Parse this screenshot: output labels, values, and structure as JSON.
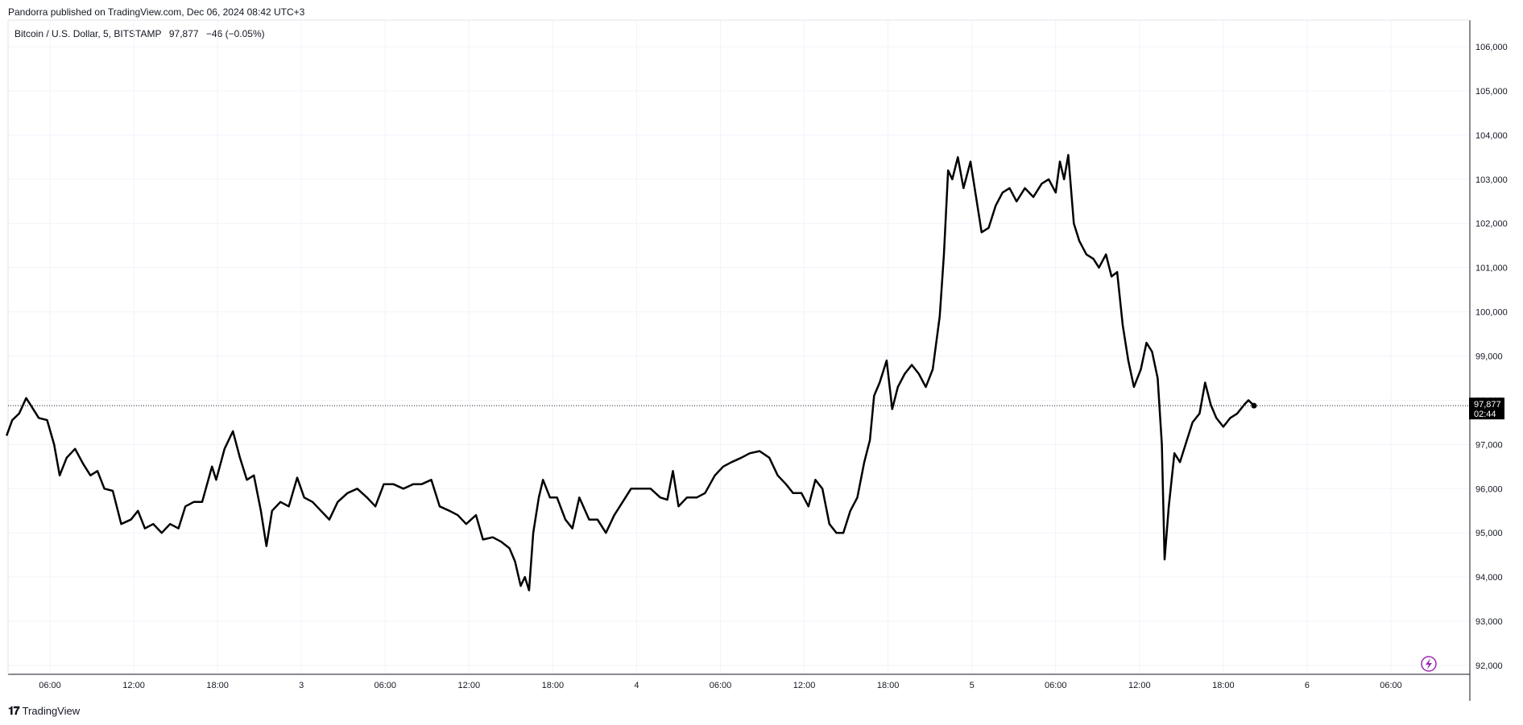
{
  "publisher": "Pandorra published on TradingView.com, Dec 06, 2024 08:42 UTC+3",
  "legend": {
    "symbol": "Bitcoin / U.S. Dollar, 5, BITSTAMP",
    "price": "97,877",
    "change": "−46 (−0.05%)"
  },
  "footer": {
    "brand": "TradingView",
    "logo": "tradingview-logo-icon"
  },
  "current_price": {
    "value": "97,877",
    "countdown": "02:44"
  },
  "colors": {
    "line": "#000000",
    "grid": "#f0f3fa",
    "axis": "#131722",
    "price_label": "#000000",
    "lightning": "#9c27b0"
  },
  "chart_data": {
    "type": "line",
    "title": "Bitcoin / U.S. Dollar, 5, BITSTAMP",
    "xlabel": "",
    "ylabel": "",
    "ylim": [
      91800,
      106500
    ],
    "y_ticks": [
      92000,
      93000,
      94000,
      95000,
      96000,
      97000,
      98000,
      99000,
      100000,
      101000,
      102000,
      103000,
      104000,
      105000,
      106000
    ],
    "y_tick_labels": [
      "92,000",
      "93,000",
      "94,000",
      "95,000",
      "96,000",
      "97,000",
      "98,000",
      "99,000",
      "100,000",
      "101,000",
      "102,000",
      "103,000",
      "104,000",
      "105,000",
      "106,000"
    ],
    "x_ticks": [
      {
        "label": "06:00",
        "t": 6
      },
      {
        "label": "12:00",
        "t": 12
      },
      {
        "label": "18:00",
        "t": 18
      },
      {
        "label": "3",
        "t": 24
      },
      {
        "label": "06:00",
        "t": 30
      },
      {
        "label": "12:00",
        "t": 36
      },
      {
        "label": "18:00",
        "t": 42
      },
      {
        "label": "4",
        "t": 48
      },
      {
        "label": "06:00",
        "t": 54
      },
      {
        "label": "12:00",
        "t": 60
      },
      {
        "label": "18:00",
        "t": 66
      },
      {
        "label": "5",
        "t": 72
      },
      {
        "label": "06:00",
        "t": 78
      },
      {
        "label": "12:00",
        "t": 84
      },
      {
        "label": "18:00",
        "t": 90
      },
      {
        "label": "6",
        "t": 96
      },
      {
        "label": "06:00",
        "t": 102
      }
    ],
    "series": [
      {
        "values": [
          [
            2.9,
            97200
          ],
          [
            3.3,
            97550
          ],
          [
            3.8,
            97700
          ],
          [
            4.3,
            98050
          ],
          [
            4.7,
            97850
          ],
          [
            5.2,
            97600
          ],
          [
            5.8,
            97550
          ],
          [
            6.3,
            97000
          ],
          [
            6.7,
            96300
          ],
          [
            7.2,
            96700
          ],
          [
            7.8,
            96900
          ],
          [
            8.4,
            96550
          ],
          [
            8.9,
            96300
          ],
          [
            9.4,
            96400
          ],
          [
            9.9,
            96000
          ],
          [
            10.5,
            95950
          ],
          [
            11.1,
            95200
          ],
          [
            11.8,
            95300
          ],
          [
            12.3,
            95500
          ],
          [
            12.8,
            95100
          ],
          [
            13.4,
            95200
          ],
          [
            14.0,
            95000
          ],
          [
            14.6,
            95200
          ],
          [
            15.2,
            95100
          ],
          [
            15.7,
            95600
          ],
          [
            16.3,
            95700
          ],
          [
            16.9,
            95700
          ],
          [
            17.6,
            96500
          ],
          [
            17.9,
            96200
          ],
          [
            18.5,
            96900
          ],
          [
            19.1,
            97300
          ],
          [
            19.6,
            96700
          ],
          [
            20.1,
            96200
          ],
          [
            20.6,
            96300
          ],
          [
            21.1,
            95500
          ],
          [
            21.5,
            94700
          ],
          [
            21.9,
            95500
          ],
          [
            22.5,
            95700
          ],
          [
            23.1,
            95600
          ],
          [
            23.7,
            96250
          ],
          [
            24.2,
            95800
          ],
          [
            24.8,
            95700
          ],
          [
            25.4,
            95500
          ],
          [
            26.0,
            95300
          ],
          [
            26.6,
            95700
          ],
          [
            27.3,
            95900
          ],
          [
            28.0,
            96000
          ],
          [
            28.7,
            95800
          ],
          [
            29.3,
            95600
          ],
          [
            29.9,
            96100
          ],
          [
            30.6,
            96100
          ],
          [
            31.3,
            96000
          ],
          [
            32.0,
            96100
          ],
          [
            32.6,
            96100
          ],
          [
            33.3,
            96200
          ],
          [
            33.9,
            95600
          ],
          [
            34.6,
            95500
          ],
          [
            35.2,
            95400
          ],
          [
            35.8,
            95200
          ],
          [
            36.5,
            95400
          ],
          [
            37.0,
            94850
          ],
          [
            37.7,
            94900
          ],
          [
            38.3,
            94800
          ],
          [
            38.9,
            94650
          ],
          [
            39.3,
            94350
          ],
          [
            39.7,
            93800
          ],
          [
            40.0,
            94000
          ],
          [
            40.3,
            93700
          ],
          [
            40.6,
            95000
          ],
          [
            41.0,
            95800
          ],
          [
            41.3,
            96200
          ],
          [
            41.8,
            95800
          ],
          [
            42.3,
            95800
          ],
          [
            42.9,
            95300
          ],
          [
            43.4,
            95100
          ],
          [
            43.9,
            95800
          ],
          [
            44.6,
            95300
          ],
          [
            45.2,
            95300
          ],
          [
            45.8,
            95000
          ],
          [
            46.4,
            95400
          ],
          [
            47.0,
            95700
          ],
          [
            47.6,
            96000
          ],
          [
            48.3,
            96000
          ],
          [
            49.0,
            96000
          ],
          [
            49.7,
            95800
          ],
          [
            50.2,
            95750
          ],
          [
            50.6,
            96400
          ],
          [
            51.0,
            95600
          ],
          [
            51.6,
            95800
          ],
          [
            52.3,
            95800
          ],
          [
            52.9,
            95900
          ],
          [
            53.6,
            96300
          ],
          [
            54.2,
            96500
          ],
          [
            54.8,
            96600
          ],
          [
            55.5,
            96700
          ],
          [
            56.1,
            96800
          ],
          [
            56.8,
            96850
          ],
          [
            57.5,
            96700
          ],
          [
            58.1,
            96300
          ],
          [
            58.7,
            96100
          ],
          [
            59.2,
            95900
          ],
          [
            59.8,
            95900
          ],
          [
            60.3,
            95600
          ],
          [
            60.8,
            96200
          ],
          [
            61.3,
            96000
          ],
          [
            61.8,
            95200
          ],
          [
            62.3,
            95000
          ],
          [
            62.8,
            95000
          ],
          [
            63.3,
            95500
          ],
          [
            63.8,
            95800
          ],
          [
            64.3,
            96600
          ],
          [
            64.7,
            97100
          ],
          [
            65.0,
            98100
          ],
          [
            65.4,
            98400
          ],
          [
            65.9,
            98900
          ],
          [
            66.3,
            97800
          ],
          [
            66.7,
            98300
          ],
          [
            67.2,
            98600
          ],
          [
            67.7,
            98800
          ],
          [
            68.2,
            98600
          ],
          [
            68.7,
            98300
          ],
          [
            69.2,
            98700
          ],
          [
            69.7,
            99900
          ],
          [
            70.0,
            101300
          ],
          [
            70.3,
            103200
          ],
          [
            70.6,
            103000
          ],
          [
            71.0,
            103500
          ],
          [
            71.4,
            102800
          ],
          [
            71.9,
            103400
          ],
          [
            72.3,
            102600
          ],
          [
            72.7,
            101800
          ],
          [
            73.2,
            101900
          ],
          [
            73.7,
            102400
          ],
          [
            74.2,
            102700
          ],
          [
            74.7,
            102800
          ],
          [
            75.2,
            102500
          ],
          [
            75.8,
            102800
          ],
          [
            76.4,
            102600
          ],
          [
            77.0,
            102900
          ],
          [
            77.5,
            103000
          ],
          [
            78.0,
            102700
          ],
          [
            78.3,
            103400
          ],
          [
            78.6,
            103000
          ],
          [
            78.9,
            103550
          ],
          [
            79.3,
            102000
          ],
          [
            79.7,
            101600
          ],
          [
            80.2,
            101300
          ],
          [
            80.7,
            101200
          ],
          [
            81.1,
            101000
          ],
          [
            81.6,
            101300
          ],
          [
            82.0,
            100800
          ],
          [
            82.4,
            100900
          ],
          [
            82.8,
            99700
          ],
          [
            83.2,
            98900
          ],
          [
            83.6,
            98300
          ],
          [
            84.1,
            98700
          ],
          [
            84.5,
            99300
          ],
          [
            84.9,
            99100
          ],
          [
            85.3,
            98500
          ],
          [
            85.6,
            97000
          ],
          [
            85.8,
            94400
          ],
          [
            86.1,
            95600
          ],
          [
            86.5,
            96800
          ],
          [
            86.9,
            96600
          ],
          [
            87.3,
            97000
          ],
          [
            87.8,
            97500
          ],
          [
            88.3,
            97700
          ],
          [
            88.7,
            98400
          ],
          [
            89.1,
            97900
          ],
          [
            89.5,
            97600
          ],
          [
            90.0,
            97400
          ],
          [
            90.5,
            97600
          ],
          [
            91.0,
            97700
          ],
          [
            91.5,
            97900
          ],
          [
            91.8,
            98000
          ],
          [
            92.2,
            97877
          ]
        ]
      }
    ],
    "grid": true,
    "legend_position": "top-left"
  }
}
